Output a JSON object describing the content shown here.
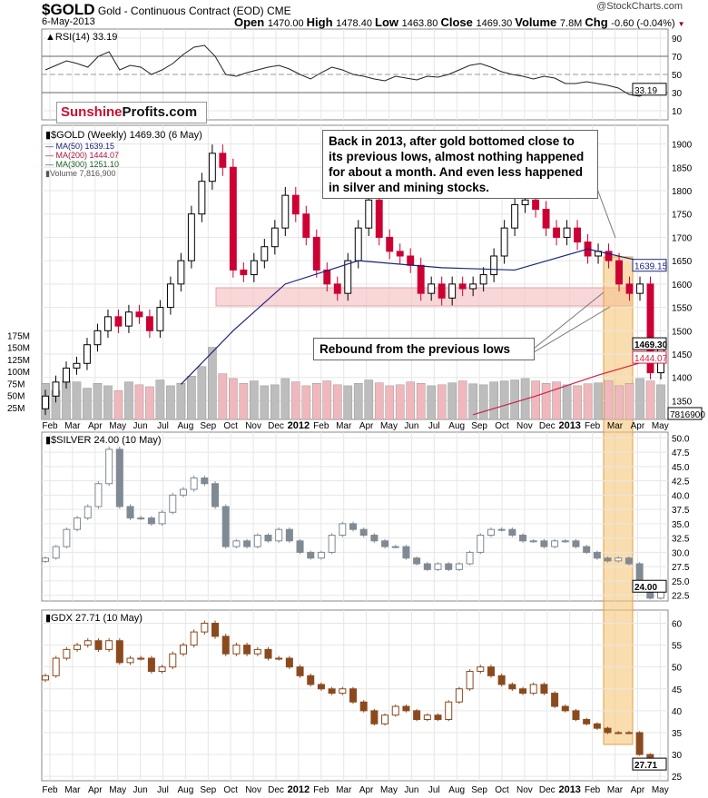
{
  "header": {
    "symbol": "$GOLD",
    "name": "Gold - Continuous Contract (EOD)",
    "exchange": "CME",
    "date": "6-May-2013",
    "credit": "@StockCharts.com",
    "ohlc": [
      {
        "k": "Open",
        "v": "1470.00"
      },
      {
        "k": "High",
        "v": "1478.40"
      },
      {
        "k": "Low",
        "v": "1463.80"
      },
      {
        "k": "Close",
        "v": "1469.30"
      },
      {
        "k": "Volume",
        "v": "7.8M"
      },
      {
        "k": "Chg",
        "v": "-0.60 (-0.04%)"
      }
    ]
  },
  "logo": {
    "part1": "Sunshine",
    "part2": "Profits.com"
  },
  "annotations": {
    "callout": "Back in 2013, after gold bottomed close to its previous lows, almost nothing happened for about a month. And even less happened in silver and mining stocks.",
    "rebound": "Rebound from the previous lows"
  },
  "colors": {
    "up": "#ffffff",
    "down": "#cc0033",
    "ma50": "#1a237e",
    "ma200": "#cc2244",
    "silver": "#7f8a94",
    "gdx": "#8b4a1e",
    "band": "#f5c6c8",
    "highlight": "#f7c67a"
  },
  "chart_data": [
    {
      "type": "line",
      "title": "RSI(14) 33.19",
      "ylim": [
        0,
        100
      ],
      "ticks": [
        "90",
        "70",
        "50",
        "30",
        "10"
      ],
      "tickValues": [
        90,
        70,
        50,
        30,
        10
      ],
      "last": "33.19",
      "values": [
        55,
        60,
        65,
        62,
        58,
        70,
        75,
        55,
        60,
        58,
        50,
        55,
        62,
        72,
        80,
        82,
        70,
        50,
        48,
        52,
        55,
        58,
        60,
        56,
        50,
        45,
        52,
        58,
        55,
        50,
        48,
        45,
        43,
        48,
        46,
        44,
        48,
        47,
        50,
        55,
        60,
        62,
        58,
        53,
        50,
        48,
        45,
        48,
        46,
        40,
        40,
        42,
        40,
        38,
        35,
        28,
        26,
        31,
        33.19
      ]
    },
    {
      "type": "candlestick",
      "title": "$GOLD (Weekly) 1469.30 (6 May)",
      "ylim": [
        1310,
        1940
      ],
      "legend": [
        "MA(50) 1639.15",
        "MA(200) 1444.07",
        "MA(300) 1251.10",
        "Volume 7,816,900"
      ],
      "ticks": [
        "1900",
        "1850",
        "1800",
        "1750",
        "1700",
        "1650",
        "1600",
        "1550",
        "1500",
        "1450",
        "1400",
        "1350"
      ],
      "volTicks": [
        "175M",
        "150M",
        "125M",
        "100M",
        "75M",
        "50M",
        "25M"
      ],
      "closes": [
        1360,
        1390,
        1420,
        1430,
        1470,
        1500,
        1530,
        1510,
        1540,
        1530,
        1500,
        1550,
        1600,
        1650,
        1750,
        1820,
        1880,
        1850,
        1630,
        1620,
        1650,
        1680,
        1720,
        1790,
        1750,
        1700,
        1630,
        1600,
        1580,
        1650,
        1720,
        1780,
        1700,
        1670,
        1660,
        1640,
        1580,
        1600,
        1570,
        1600,
        1590,
        1600,
        1620,
        1660,
        1720,
        1770,
        1780,
        1760,
        1720,
        1700,
        1720,
        1690,
        1660,
        1670,
        1650,
        1600,
        1580,
        1600,
        1410,
        1469.3
      ],
      "volume": [
        75,
        60,
        80,
        78,
        65,
        75,
        70,
        60,
        78,
        72,
        68,
        82,
        70,
        75,
        90,
        110,
        150,
        95,
        85,
        75,
        80,
        70,
        72,
        85,
        78,
        70,
        75,
        80,
        72,
        70,
        75,
        82,
        76,
        70,
        72,
        78,
        75,
        70,
        72,
        76,
        80,
        74,
        72,
        78,
        80,
        82,
        85,
        80,
        75,
        78,
        72,
        70,
        74,
        76,
        80,
        70,
        75,
        85,
        80,
        72
      ],
      "ma50": [
        [
          26,
          1385
        ],
        [
          36,
          1500
        ],
        [
          46,
          1600
        ],
        [
          60,
          1650
        ],
        [
          76,
          1635
        ],
        [
          90,
          1630
        ],
        [
          104,
          1675
        ],
        [
          118,
          1639.15
        ]
      ],
      "ma200": [
        [
          82,
          1320
        ],
        [
          94,
          1360
        ],
        [
          106,
          1405
        ],
        [
          118,
          1444.07
        ]
      ],
      "labels": {
        "close": "1469.30",
        "ma50": "1639.15",
        "ma200": "1444.07",
        "vol": "7816900"
      },
      "months": [
        "Feb",
        "Mar",
        "Apr",
        "May",
        "Jun",
        "Jul",
        "Aug",
        "Sep",
        "Oct",
        "Nov",
        "Dec",
        "2012",
        "Feb",
        "Mar",
        "Apr",
        "May",
        "Jun",
        "Jul",
        "Aug",
        "Sep",
        "Oct",
        "Nov",
        "Dec",
        "2013",
        "Feb",
        "Mar",
        "Apr",
        "May"
      ]
    },
    {
      "type": "candlestick",
      "title": "$SILVER 24.00 (10 May)",
      "ylim": [
        21.5,
        51
      ],
      "ticks": [
        "50.0",
        "47.5",
        "45.0",
        "42.5",
        "40.0",
        "37.5",
        "35.0",
        "32.5",
        "30.0",
        "27.5",
        "25.0",
        "22.5"
      ],
      "last": "24.00",
      "closes": [
        29,
        31,
        34,
        36,
        38,
        42,
        48,
        38,
        36,
        36,
        35,
        37,
        40,
        41,
        43,
        42,
        38,
        31,
        32,
        31,
        33,
        32,
        34,
        32,
        30,
        29,
        30,
        33,
        35,
        34,
        33,
        32,
        31,
        31,
        29,
        28,
        27,
        28,
        27,
        28,
        30,
        33,
        34,
        34,
        33,
        32,
        32,
        31,
        32,
        32,
        31,
        30,
        29,
        28.5,
        29,
        28,
        24,
        22,
        24
      ]
    },
    {
      "type": "candlestick",
      "title": "GDX 27.71 (10 May)",
      "ylim": [
        24,
        63
      ],
      "ticks": [
        "60",
        "55",
        "50",
        "45",
        "40",
        "35",
        "30",
        "25"
      ],
      "last": "27.71",
      "closes": [
        48,
        52,
        54,
        55,
        56,
        54,
        56,
        51,
        52,
        52,
        49,
        50,
        53,
        55,
        58,
        60,
        57,
        53,
        55,
        53,
        54,
        52,
        52,
        50,
        48,
        46,
        45,
        44,
        45,
        42,
        40,
        37,
        39,
        41,
        40,
        38,
        39,
        38,
        42,
        45,
        49,
        50,
        48,
        46,
        45,
        44,
        46,
        44,
        41,
        40,
        38,
        37,
        36,
        35,
        35,
        35,
        30,
        27,
        27.71
      ]
    }
  ]
}
